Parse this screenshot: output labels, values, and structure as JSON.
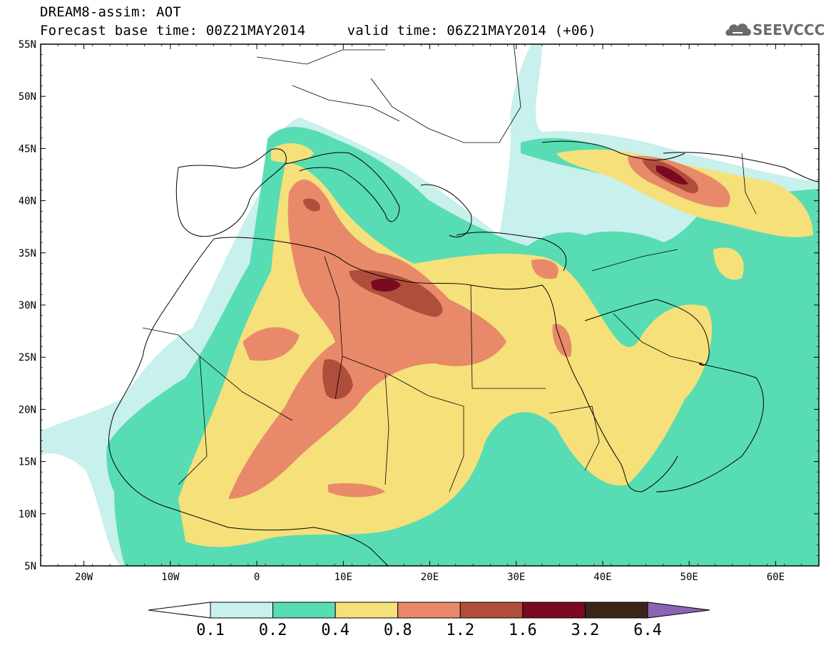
{
  "header": {
    "title_line1": "DREAM8-assim: AOT",
    "title_line2": "Forecast base time: 00Z21MAY2014     valid time: 06Z21MAY2014 (+06)",
    "logo_text": "SEEVCCC",
    "logo_icon": "cloud-icon"
  },
  "map": {
    "type": "filled-contour-map",
    "variable": "AOT",
    "lon_range": [
      -25,
      65
    ],
    "lat_range": [
      5,
      55
    ],
    "lon_ticks": [
      "20W",
      "10W",
      "0",
      "10E",
      "20E",
      "30E",
      "40E",
      "50E",
      "60E"
    ],
    "lat_ticks": [
      "55N",
      "50N",
      "45N",
      "40N",
      "35N",
      "30N",
      "25N",
      "20N",
      "15N",
      "10N",
      "5N"
    ],
    "background": "#ffffff"
  },
  "colorbar": {
    "labels": [
      "0.1",
      "0.2",
      "0.4",
      "0.8",
      "1.2",
      "1.6",
      "3.2",
      "6.4"
    ],
    "colors": [
      "#c8f0ec",
      "#58dcb4",
      "#f5e07a",
      "#e8896a",
      "#b04e3c",
      "#7a0a22",
      "#3a2618",
      "#8c64b4"
    ],
    "under_color": "#ffffff"
  }
}
